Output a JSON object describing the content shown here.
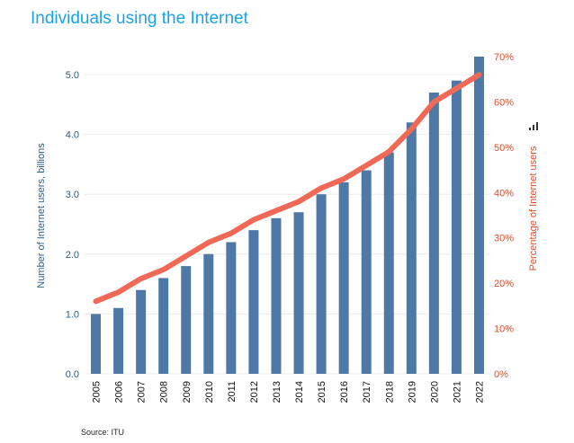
{
  "chart_data": {
    "type": "bar",
    "title": "Individuals using the Internet",
    "source": "Source: ITU",
    "categories": [
      "2005",
      "2006",
      "2007",
      "2008",
      "2009",
      "2010",
      "2011",
      "2012",
      "2013",
      "2014",
      "2015",
      "2016",
      "2017",
      "2018",
      "2019",
      "2020",
      "2021",
      "2022"
    ],
    "series": [
      {
        "name": "Number of Internet users, billions",
        "type": "bar",
        "axis": "left",
        "color": "#4e79a7",
        "values": [
          1.0,
          1.1,
          1.4,
          1.6,
          1.8,
          2.0,
          2.2,
          2.4,
          2.6,
          2.7,
          3.0,
          3.2,
          3.4,
          3.7,
          4.2,
          4.7,
          4.9,
          5.3
        ]
      },
      {
        "name": "Percentage of Internet users",
        "type": "line",
        "axis": "right",
        "color": "#f06856",
        "values": [
          16,
          18,
          21,
          23,
          26,
          29,
          31,
          34,
          36,
          38,
          41,
          43,
          46,
          49,
          54,
          60,
          63,
          66
        ]
      }
    ],
    "ylabel": "Number of Internet users, billions",
    "ylim": [
      0,
      5.3
    ],
    "yticks": [
      "0.0",
      "1.0",
      "2.0",
      "3.0",
      "4.0",
      "5.0"
    ],
    "y2label": "Percentage of Internet users",
    "y2lim": [
      0,
      70
    ],
    "y2ticks": [
      "0%",
      "10%",
      "20%",
      "30%",
      "40%",
      "50%",
      "60%",
      "70%"
    ],
    "left_axis_color": "#2c5f8a",
    "right_axis_color": "#d9502e",
    "grid": true
  }
}
